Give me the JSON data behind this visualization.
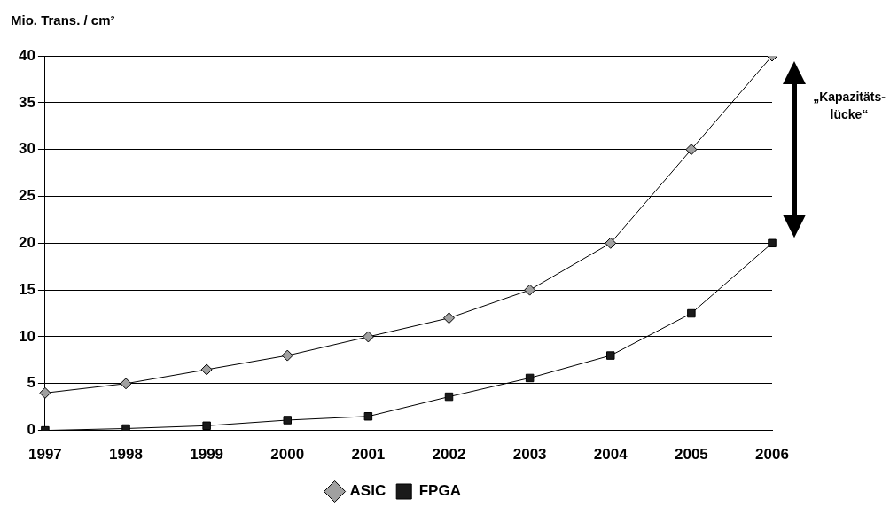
{
  "chart_data": {
    "type": "line",
    "ylabel": "Mio. Trans. / cm²",
    "categories": [
      "1997",
      "1998",
      "1999",
      "2000",
      "2001",
      "2002",
      "2003",
      "2004",
      "2005",
      "2006"
    ],
    "series": [
      {
        "name": "ASIC",
        "color": "#a0a0a0",
        "marker": "diamond",
        "values": [
          4,
          5,
          6.5,
          8,
          10,
          12,
          15,
          20,
          30,
          40
        ]
      },
      {
        "name": "FPGA",
        "color": "#1a1a1a",
        "marker": "square",
        "values": [
          0,
          0.2,
          0.5,
          1.1,
          1.5,
          3.6,
          5.6,
          8,
          12.5,
          20
        ]
      }
    ],
    "ylim": [
      0,
      40
    ],
    "yticks": [
      0,
      5,
      10,
      15,
      20,
      25,
      30,
      35,
      40
    ],
    "grid": "y",
    "legend": "bottom",
    "annotations": [
      "„Kapazitäts- lücke“"
    ]
  }
}
